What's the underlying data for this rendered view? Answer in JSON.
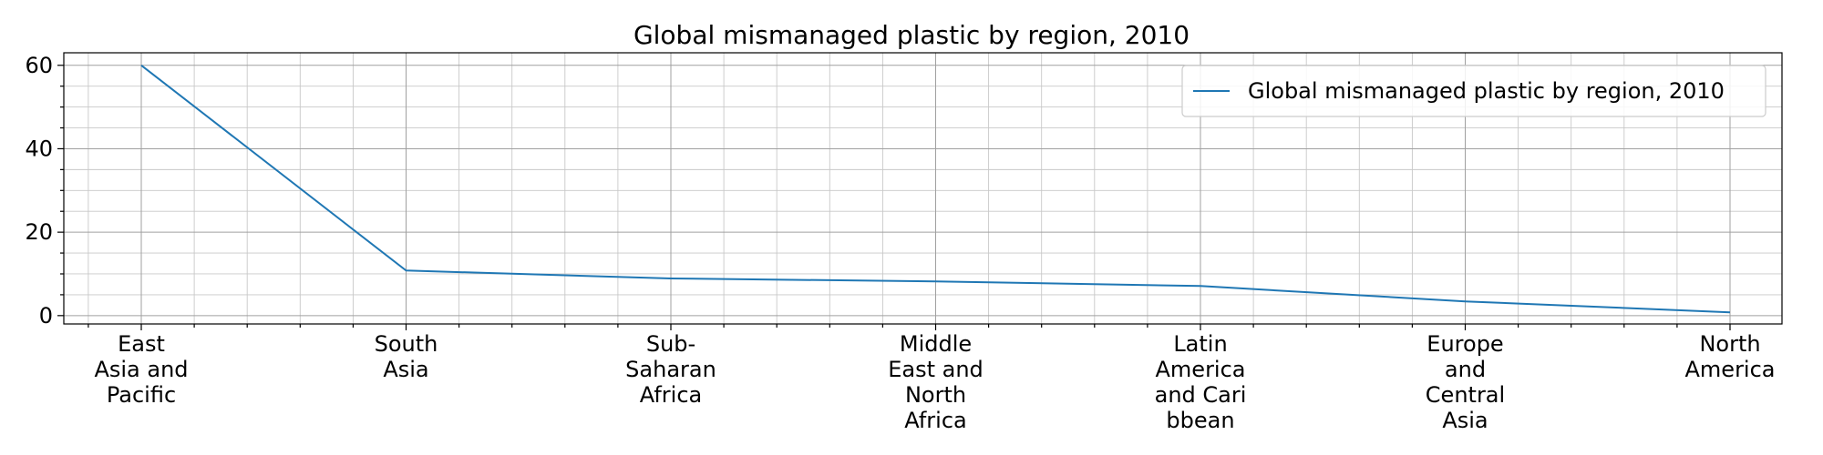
{
  "chart_data": {
    "type": "line",
    "title": "Global mismanaged plastic by region, 2010",
    "xlabel": "",
    "ylabel": "",
    "categories": [
      [
        "East",
        "Asia and",
        "Pacific"
      ],
      [
        "South",
        "Asia"
      ],
      [
        "Sub-",
        "Saharan",
        "Africa"
      ],
      [
        "Middle",
        "East and",
        "North",
        "Africa"
      ],
      [
        "Latin",
        "America",
        "and Cari",
        "bbean"
      ],
      [
        "Europe",
        "and",
        "Central",
        "Asia"
      ],
      [
        "North",
        "America"
      ]
    ],
    "series": [
      {
        "name": "Global mismanaged plastic by region, 2010",
        "values": [
          60.0,
          10.8,
          8.9,
          8.2,
          7.1,
          3.4,
          0.8
        ],
        "color": "#1f77b4"
      }
    ],
    "ylim": [
      -2,
      63
    ],
    "yticks": [
      0,
      20,
      40,
      60
    ],
    "grid": true,
    "minor_grid": true,
    "legend": "top-right"
  }
}
